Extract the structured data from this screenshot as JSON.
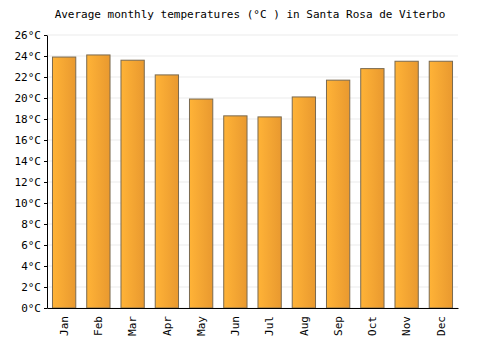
{
  "chart_data": {
    "type": "bar",
    "title": "Average monthly temperatures (°C ) in Santa Rosa de Viterbo",
    "categories": [
      "Jan",
      "Feb",
      "Mar",
      "Apr",
      "May",
      "Jun",
      "Jul",
      "Aug",
      "Sep",
      "Oct",
      "Nov",
      "Dec"
    ],
    "values": [
      23.9,
      24.1,
      23.6,
      22.2,
      19.9,
      18.3,
      18.2,
      20.1,
      21.7,
      22.8,
      23.5,
      23.5
    ],
    "color": "#ffa733",
    "ylim": [
      0,
      26
    ],
    "yticks": [
      {
        "value": 0,
        "label": "0°C"
      },
      {
        "value": 2,
        "label": "2°C"
      },
      {
        "value": 4,
        "label": "4°C"
      },
      {
        "value": 6,
        "label": "6°C"
      },
      {
        "value": 8,
        "label": "8°C"
      },
      {
        "value": 10,
        "label": "10°C"
      },
      {
        "value": 12,
        "label": "12°C"
      },
      {
        "value": 14,
        "label": "14°C"
      },
      {
        "value": 16,
        "label": "16°C"
      },
      {
        "value": 18,
        "label": "18°C"
      },
      {
        "value": 20,
        "label": "20°C"
      },
      {
        "value": 22,
        "label": "22°C"
      },
      {
        "value": 24,
        "label": "24°C"
      },
      {
        "value": 26,
        "label": "26°C"
      }
    ],
    "grid": true
  }
}
